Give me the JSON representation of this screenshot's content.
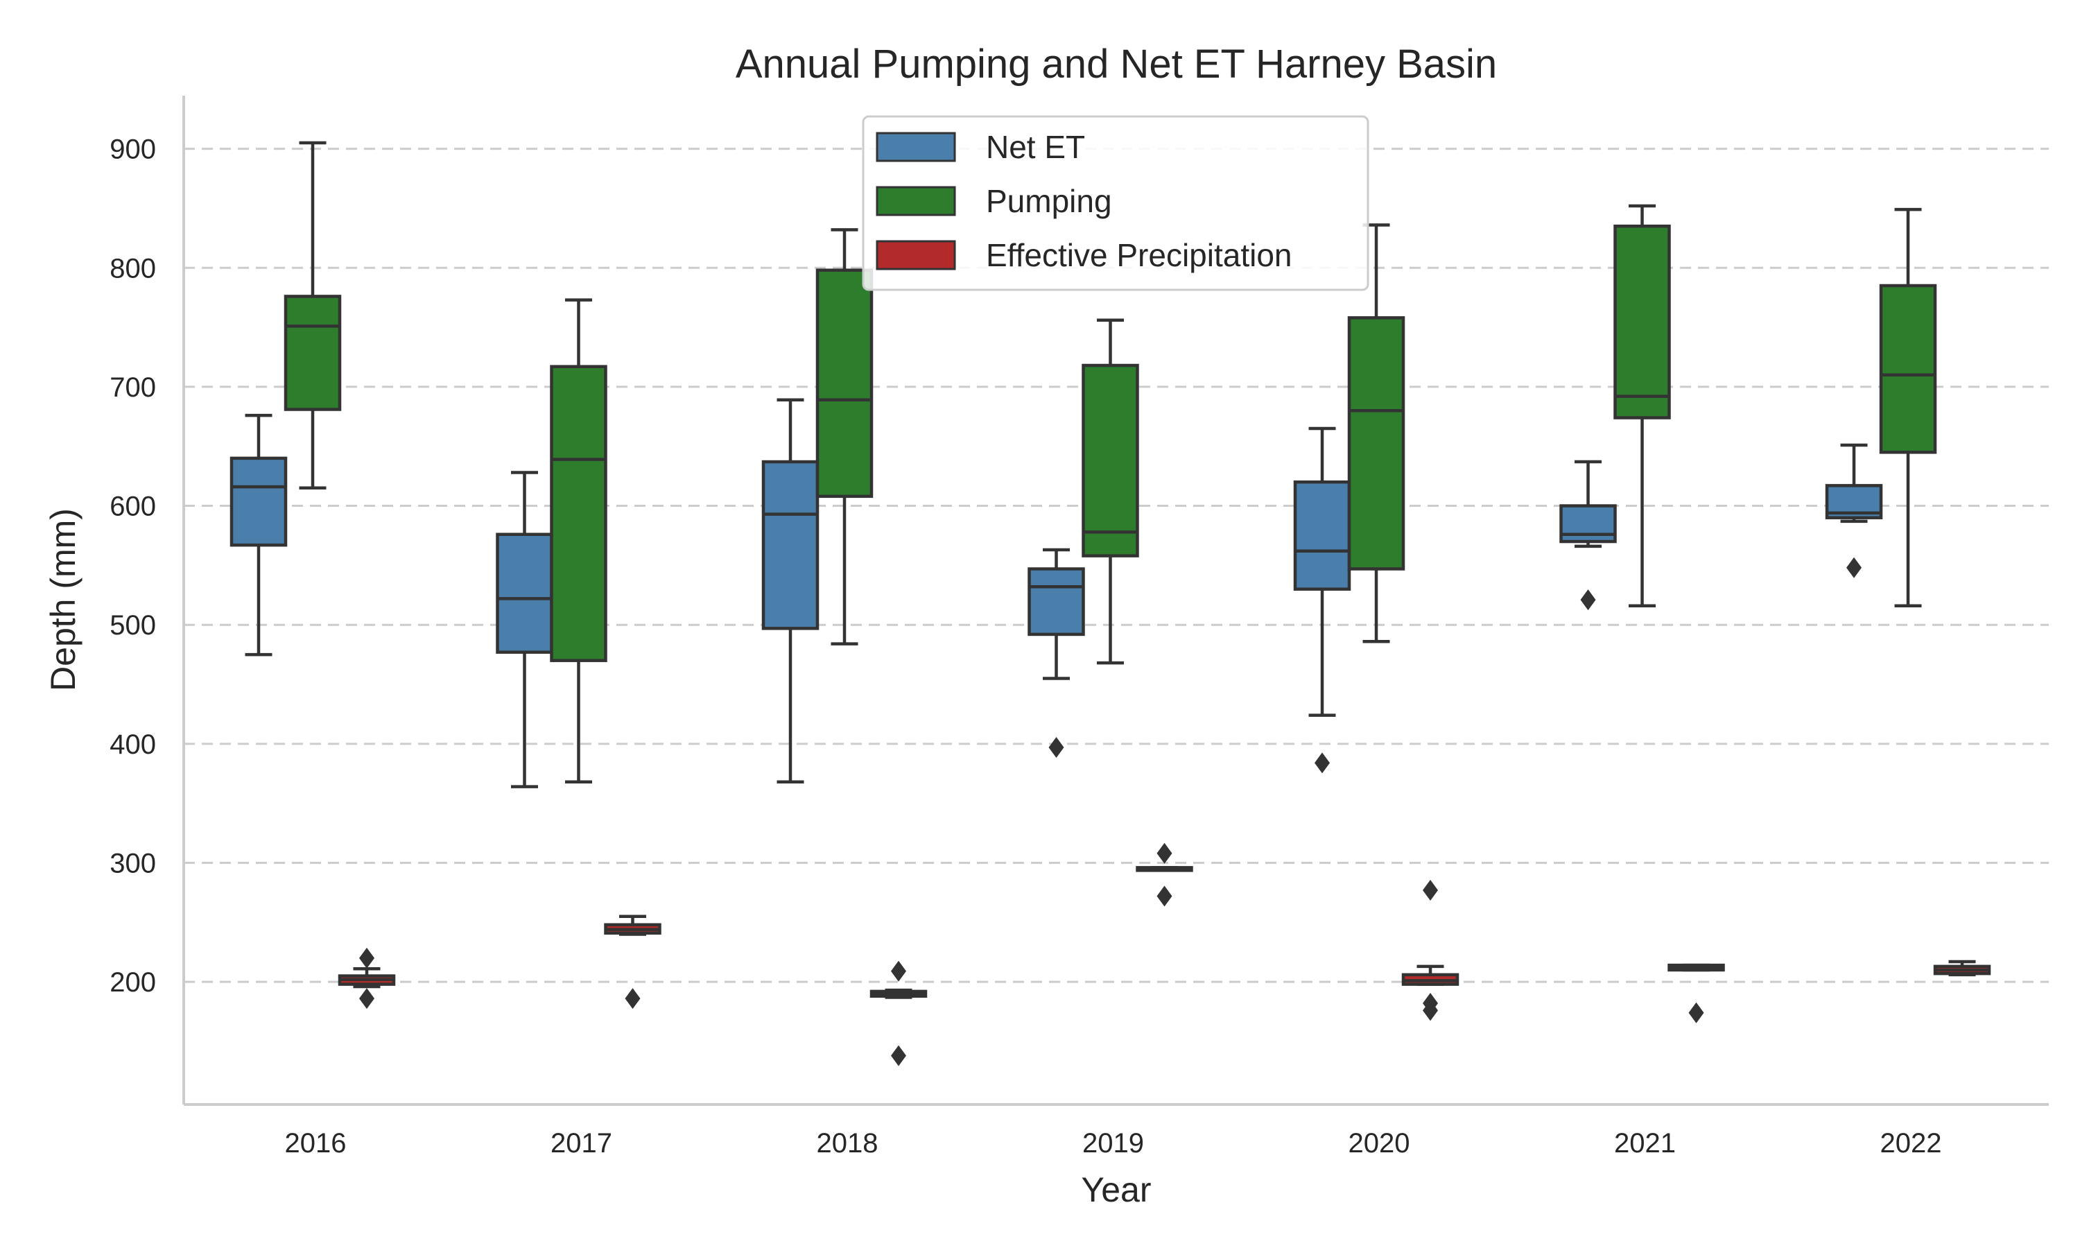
{
  "chart_data": {
    "type": "box",
    "title": "Annual Pumping and Net ET Harney Basin",
    "xlabel": "Year",
    "ylabel": "Depth (mm)",
    "categories": [
      "2016",
      "2017",
      "2018",
      "2019",
      "2020",
      "2021",
      "2022"
    ],
    "yticks": [
      "200",
      "300",
      "400",
      "500",
      "600",
      "700",
      "800",
      "900"
    ],
    "ylim": [
      100,
      945
    ],
    "grid": "horizontal dashed",
    "legend": {
      "placement": "top-center",
      "entries": [
        "Net ET",
        "Pumping",
        "Effective Precipitation"
      ]
    },
    "colors": {
      "Net ET": "#4a7eab",
      "Pumping": "#2d7d2d",
      "Effective Precipitation": "#b22a2a"
    },
    "series": [
      {
        "name": "Net ET",
        "boxes": [
          {
            "whisker_low": 475,
            "q1": 567,
            "median": 616,
            "q3": 640,
            "whisker_high": 676,
            "fliers": []
          },
          {
            "whisker_low": 364,
            "q1": 477,
            "median": 522,
            "q3": 576,
            "whisker_high": 628,
            "fliers": []
          },
          {
            "whisker_low": 368,
            "q1": 497,
            "median": 593,
            "q3": 637,
            "whisker_high": 689,
            "fliers": []
          },
          {
            "whisker_low": 455,
            "q1": 492,
            "median": 532,
            "q3": 547,
            "whisker_high": 563,
            "fliers": [
              397
            ]
          },
          {
            "whisker_low": 424,
            "q1": 530,
            "median": 562,
            "q3": 620,
            "whisker_high": 665,
            "fliers": [
              384
            ]
          },
          {
            "whisker_low": 566,
            "q1": 570,
            "median": 576,
            "q3": 600,
            "whisker_high": 637,
            "fliers": [
              521
            ]
          },
          {
            "whisker_low": 587,
            "q1": 590,
            "median": 594,
            "q3": 617,
            "whisker_high": 651,
            "fliers": [
              548
            ]
          }
        ]
      },
      {
        "name": "Pumping",
        "boxes": [
          {
            "whisker_low": 615,
            "q1": 681,
            "median": 751,
            "q3": 776,
            "whisker_high": 905,
            "fliers": []
          },
          {
            "whisker_low": 368,
            "q1": 470,
            "median": 639,
            "q3": 717,
            "whisker_high": 773,
            "fliers": []
          },
          {
            "whisker_low": 484,
            "q1": 608,
            "median": 689,
            "q3": 798,
            "whisker_high": 832,
            "fliers": []
          },
          {
            "whisker_low": 468,
            "q1": 558,
            "median": 578,
            "q3": 718,
            "whisker_high": 756,
            "fliers": []
          },
          {
            "whisker_low": 486,
            "q1": 547,
            "median": 680,
            "q3": 758,
            "whisker_high": 836,
            "fliers": []
          },
          {
            "whisker_low": 516,
            "q1": 674,
            "median": 692,
            "q3": 835,
            "whisker_high": 852,
            "fliers": []
          },
          {
            "whisker_low": 516,
            "q1": 645,
            "median": 710,
            "q3": 785,
            "whisker_high": 849,
            "fliers": []
          }
        ]
      },
      {
        "name": "Effective Precipitation",
        "boxes": [
          {
            "whisker_low": 196,
            "q1": 198,
            "median": 202,
            "q3": 205,
            "whisker_high": 211,
            "fliers": [
              220,
              186
            ]
          },
          {
            "whisker_low": 240,
            "q1": 241,
            "median": 244,
            "q3": 248,
            "whisker_high": 255,
            "fliers": [
              186
            ]
          },
          {
            "whisker_low": 187,
            "q1": 188,
            "median": 190,
            "q3": 192,
            "whisker_high": 193,
            "fliers": [
              209,
              138
            ]
          },
          {
            "whisker_low": 294,
            "q1": 294,
            "median": 295,
            "q3": 296,
            "whisker_high": 296,
            "fliers": [
              308,
              272
            ]
          },
          {
            "whisker_low": 198,
            "q1": 198,
            "median": 201,
            "q3": 206,
            "whisker_high": 213,
            "fliers": [
              277,
              182,
              176
            ]
          },
          {
            "whisker_low": 210,
            "q1": 210,
            "median": 212,
            "q3": 214,
            "whisker_high": 214,
            "fliers": [
              174
            ]
          },
          {
            "whisker_low": 206,
            "q1": 207,
            "median": 210,
            "q3": 213,
            "whisker_high": 217,
            "fliers": []
          }
        ]
      }
    ]
  }
}
